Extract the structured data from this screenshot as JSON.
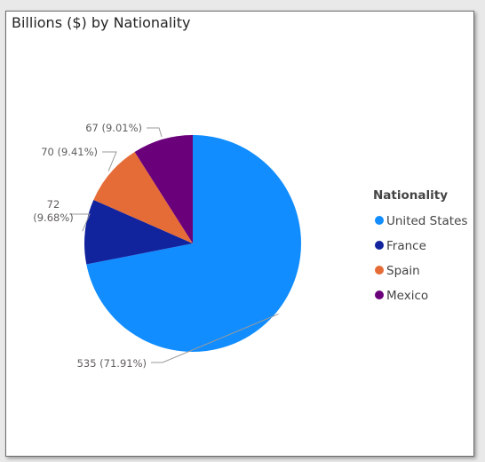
{
  "visual": {
    "title": "Billions ($) by Nationality"
  },
  "chart_data": {
    "type": "pie",
    "title": "Billions ($) by Nationality",
    "legend_title": "Nationality",
    "legend_position": "right",
    "slices": [
      {
        "name": "United States",
        "value": 535,
        "percent": "71.91%",
        "label": "535 (71.91%)",
        "color": "#118DFF"
      },
      {
        "name": "France",
        "value": 72,
        "percent": "9.68%",
        "label": "72 (9.68%)",
        "color": "#12239E"
      },
      {
        "name": "Spain",
        "value": 70,
        "percent": "9.41%",
        "label": "70 (9.41%)",
        "color": "#E66C37"
      },
      {
        "name": "Mexico",
        "value": 67,
        "percent": "9.01%",
        "label": "67 (9.01%)",
        "color": "#6B007B"
      }
    ]
  }
}
